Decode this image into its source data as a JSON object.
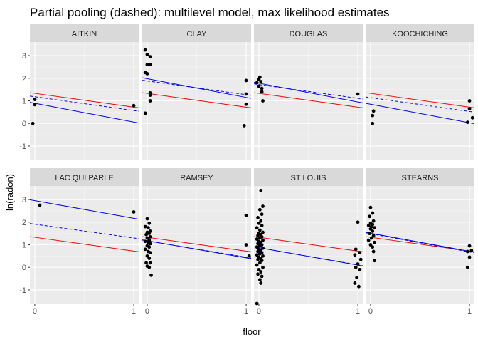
{
  "chart_data": {
    "type": "scatter",
    "title": "Partial pooling (dashed): multilevel model, max likelihood estimates",
    "xlabel": "floor",
    "ylabel": "ln(radon)",
    "xlim": [
      -0.05,
      1.05
    ],
    "ylim": [
      -1.6,
      3.6
    ],
    "x_ticks": [
      0,
      1
    ],
    "y_ticks": [
      -1,
      0,
      1,
      2,
      3
    ],
    "grid": true,
    "lines": {
      "complete_pooling": {
        "color": "#ff0000",
        "style": "solid"
      },
      "no_pooling": {
        "color": "#0000ff",
        "style": "solid"
      },
      "partial_pooling": {
        "color": "#0000ff",
        "style": "dashed"
      }
    },
    "facets": [
      {
        "county": "AITKIN",
        "pooled": [
          1.33,
          0.72
        ],
        "no_pooling": [
          0.89,
          0.06
        ],
        "partial": [
          1.18,
          0.57
        ],
        "points": [
          [
            0,
            1.06
          ],
          [
            0,
            0.83
          ],
          [
            -0.02,
            0.0
          ],
          [
            1,
            0.79
          ]
        ]
      },
      {
        "county": "CLAY",
        "pooled": [
          1.33,
          0.72
        ],
        "no_pooling": [
          1.98,
          1.15
        ],
        "partial": [
          1.88,
          1.27
        ],
        "points": [
          [
            -0.02,
            3.25
          ],
          [
            0,
            3.05
          ],
          [
            0.03,
            2.95
          ],
          [
            0,
            2.6
          ],
          [
            0.01,
            2.6
          ],
          [
            0.02,
            2.6
          ],
          [
            0.03,
            2.6
          ],
          [
            -0.02,
            2.25
          ],
          [
            0,
            2.2
          ],
          [
            0.03,
            1.35
          ],
          [
            0.03,
            1.25
          ],
          [
            0.03,
            1.0
          ],
          [
            -0.02,
            0.45
          ],
          [
            1,
            1.9
          ],
          [
            1,
            1.3
          ],
          [
            1,
            0.85
          ],
          [
            0.98,
            -0.1
          ]
        ]
      },
      {
        "county": "DOUGLAS",
        "pooled": [
          1.33,
          0.72
        ],
        "no_pooling": [
          1.78,
          0.95
        ],
        "partial": [
          1.72,
          1.11
        ],
        "points": [
          [
            0.01,
            2.05
          ],
          [
            0,
            1.95
          ],
          [
            0.02,
            1.85
          ],
          [
            0,
            1.65
          ],
          [
            0.03,
            1.55
          ],
          [
            -0.02,
            1.8
          ],
          [
            0.03,
            1.4
          ],
          [
            0.04,
            1.0
          ],
          [
            1,
            1.3
          ]
        ]
      },
      {
        "county": "KOOCHICHING",
        "pooled": [
          1.33,
          0.72
        ],
        "no_pooling": [
          0.85,
          0.03
        ],
        "partial": [
          1.14,
          0.53
        ],
        "points": [
          [
            0.03,
            0.55
          ],
          [
            0.02,
            0.35
          ],
          [
            0.02,
            0.0
          ],
          [
            1,
            1.0
          ],
          [
            1,
            0.65
          ],
          [
            1.03,
            0.25
          ],
          [
            0.98,
            0.05
          ]
        ]
      },
      {
        "county": "LAC QUI PARLE",
        "pooled": [
          1.33,
          0.72
        ],
        "no_pooling": [
          2.95,
          2.17
        ],
        "partial": [
          1.91,
          1.3
        ],
        "points": [
          [
            0.05,
            2.75
          ],
          [
            1,
            2.45
          ]
        ]
      },
      {
        "county": "RAMSEY",
        "pooled": [
          1.33,
          0.72
        ],
        "no_pooling": [
          1.18,
          0.42
        ],
        "partial": [
          1.17,
          0.45
        ],
        "points": [
          [
            0,
            2.15
          ],
          [
            0.02,
            1.95
          ],
          [
            -0.02,
            1.8
          ],
          [
            0.01,
            1.75
          ],
          [
            0.03,
            1.6
          ],
          [
            0,
            1.55
          ],
          [
            0.02,
            1.5
          ],
          [
            -0.01,
            1.45
          ],
          [
            0.03,
            1.35
          ],
          [
            0,
            1.3
          ],
          [
            0.02,
            1.2
          ],
          [
            -0.02,
            1.15
          ],
          [
            0.01,
            1.1
          ],
          [
            0.03,
            1.05
          ],
          [
            0,
            0.95
          ],
          [
            0.02,
            0.9
          ],
          [
            -0.02,
            0.8
          ],
          [
            0.01,
            0.7
          ],
          [
            0.03,
            0.65
          ],
          [
            0,
            0.5
          ],
          [
            0.02,
            0.4
          ],
          [
            -0.01,
            0.2
          ],
          [
            0.03,
            0.2
          ],
          [
            0,
            0.05
          ],
          [
            0.02,
            0.0
          ],
          [
            0.04,
            -0.35
          ],
          [
            1,
            2.3
          ],
          [
            1,
            1.0
          ],
          [
            1.03,
            0.5
          ]
        ]
      },
      {
        "county": "ST LOUIS",
        "pooled": [
          1.33,
          0.72
        ],
        "no_pooling": [
          0.87,
          0.1
        ],
        "partial": [
          0.87,
          0.11
        ],
        "points": [
          [
            0.02,
            3.4
          ],
          [
            0.04,
            2.7
          ],
          [
            0.01,
            2.55
          ],
          [
            0.03,
            2.35
          ],
          [
            -0.01,
            2.2
          ],
          [
            0.02,
            2.05
          ],
          [
            0,
            1.95
          ],
          [
            0.03,
            1.85
          ],
          [
            -0.02,
            1.75
          ],
          [
            0.01,
            1.65
          ],
          [
            0.04,
            1.55
          ],
          [
            0,
            1.5
          ],
          [
            0.02,
            1.45
          ],
          [
            -0.01,
            1.4
          ],
          [
            0.03,
            1.35
          ],
          [
            0.01,
            1.3
          ],
          [
            -0.02,
            1.25
          ],
          [
            0.04,
            1.2
          ],
          [
            0,
            1.15
          ],
          [
            0.02,
            1.1
          ],
          [
            -0.01,
            1.05
          ],
          [
            0.03,
            1.0
          ],
          [
            0.01,
            0.95
          ],
          [
            -0.02,
            0.9
          ],
          [
            0.04,
            0.85
          ],
          [
            0,
            0.8
          ],
          [
            0.02,
            0.75
          ],
          [
            -0.01,
            0.7
          ],
          [
            0.03,
            0.65
          ],
          [
            0.01,
            0.6
          ],
          [
            -0.02,
            0.55
          ],
          [
            0.04,
            0.5
          ],
          [
            0,
            0.45
          ],
          [
            0.02,
            0.4
          ],
          [
            -0.01,
            0.35
          ],
          [
            0.03,
            0.3
          ],
          [
            0.01,
            0.2
          ],
          [
            -0.02,
            0.1
          ],
          [
            0.04,
            0.0
          ],
          [
            0,
            -0.1
          ],
          [
            0.02,
            -0.2
          ],
          [
            -0.01,
            -0.3
          ],
          [
            0.03,
            -0.4
          ],
          [
            0.01,
            -0.55
          ],
          [
            0.02,
            -0.7
          ],
          [
            -0.02,
            -1.6
          ],
          [
            1,
            2.0
          ],
          [
            0.98,
            0.8
          ],
          [
            1.02,
            0.65
          ],
          [
            0.97,
            0.55
          ],
          [
            1.03,
            0.35
          ],
          [
            1,
            0.15
          ],
          [
            0.98,
            0.0
          ],
          [
            1.02,
            -0.1
          ],
          [
            0.99,
            -0.45
          ],
          [
            0.97,
            -0.7
          ],
          [
            1.01,
            -0.85
          ]
        ]
      },
      {
        "county": "STEARNS",
        "pooled": [
          1.33,
          0.72
        ],
        "no_pooling": [
          1.51,
          0.71
        ],
        "partial": [
          1.49,
          0.68
        ],
        "points": [
          [
            0,
            2.65
          ],
          [
            0.02,
            2.4
          ],
          [
            -0.01,
            2.25
          ],
          [
            0.03,
            2.05
          ],
          [
            0,
            1.95
          ],
          [
            0.02,
            1.9
          ],
          [
            -0.02,
            1.85
          ],
          [
            0.01,
            1.8
          ],
          [
            0.04,
            1.75
          ],
          [
            0,
            1.7
          ],
          [
            0.02,
            1.6
          ],
          [
            -0.01,
            1.5
          ],
          [
            0.03,
            1.4
          ],
          [
            0.01,
            1.3
          ],
          [
            -0.02,
            1.2
          ],
          [
            0.04,
            1.1
          ],
          [
            0,
            1.0
          ],
          [
            0.02,
            0.9
          ],
          [
            0.03,
            0.7
          ],
          [
            0.04,
            0.3
          ],
          [
            1,
            0.95
          ],
          [
            1.02,
            0.75
          ],
          [
            0.98,
            0.7
          ],
          [
            1,
            0.45
          ],
          [
            0.98,
            0.0
          ]
        ]
      }
    ]
  }
}
